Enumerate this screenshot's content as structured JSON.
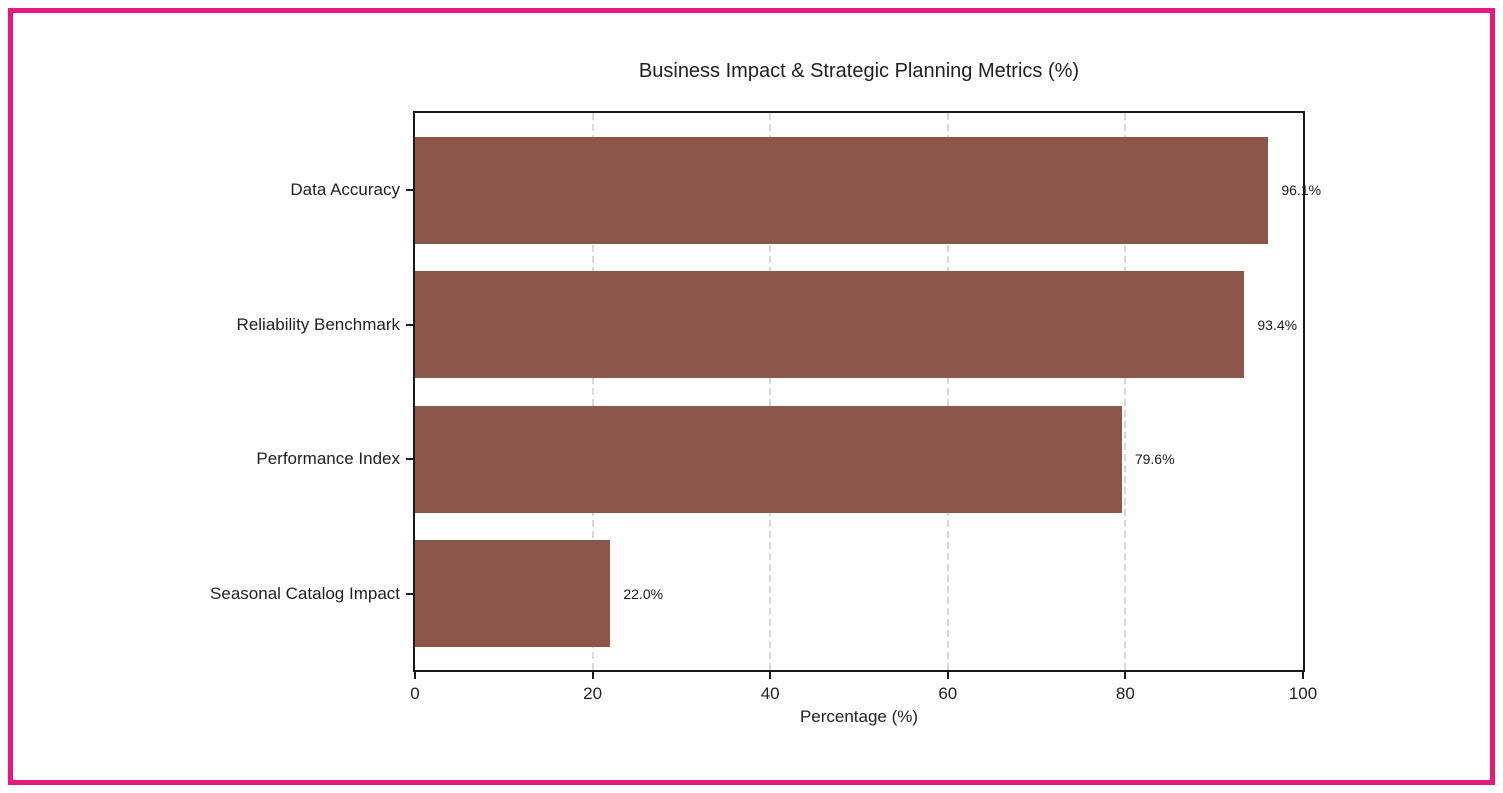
{
  "frame": {
    "border_color": "#e6197f"
  },
  "chart_data": {
    "type": "bar",
    "orientation": "horizontal",
    "title": "Business Impact & Strategic Planning Metrics (%)",
    "xlabel": "Percentage (%)",
    "ylabel": "",
    "categories": [
      "Data Accuracy",
      "Reliability Benchmark",
      "Performance Index",
      "Seasonal Catalog Impact"
    ],
    "values": [
      96.1,
      93.4,
      79.6,
      22.0
    ],
    "value_labels": [
      "96.1%",
      "93.4%",
      "79.6%",
      "22.0%"
    ],
    "bar_color": "#8c564b",
    "xlim": [
      0,
      100
    ],
    "xticks": [
      0,
      20,
      40,
      60,
      80,
      100
    ],
    "xtick_labels": [
      "0",
      "20",
      "40",
      "60",
      "80",
      "100"
    ],
    "grid": "vertical-dashed",
    "gridline_color": "#d8d8d8",
    "legend": "none"
  }
}
